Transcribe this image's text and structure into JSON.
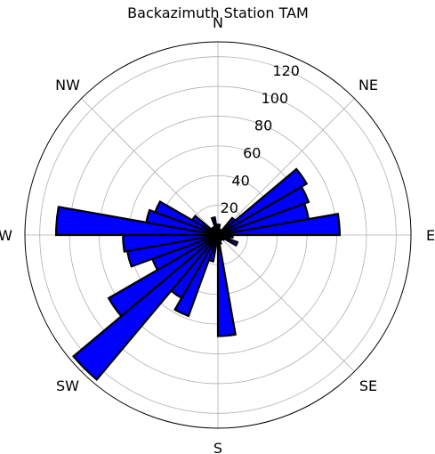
{
  "chart_data": {
    "type": "polar-bar",
    "title": "Backazimuth Station TAM",
    "theta_zero": "N",
    "theta_direction": "clockwise",
    "direction_labels": [
      "N",
      "NE",
      "E",
      "SE",
      "S",
      "SW",
      "W",
      "NW"
    ],
    "r_ticks": [
      20,
      40,
      60,
      80,
      100,
      120
    ],
    "rlim": [
      0,
      130
    ],
    "grid": true,
    "bin_width_deg": 10,
    "bins": [
      {
        "angle_deg": 5,
        "value": 7
      },
      {
        "angle_deg": 15,
        "value": 4
      },
      {
        "angle_deg": 25,
        "value": 3
      },
      {
        "angle_deg": 35,
        "value": 3
      },
      {
        "angle_deg": 45,
        "value": 15
      },
      {
        "angle_deg": 55,
        "value": 69
      },
      {
        "angle_deg": 65,
        "value": 65
      },
      {
        "angle_deg": 75,
        "value": 62
      },
      {
        "angle_deg": 85,
        "value": 82
      },
      {
        "angle_deg": 95,
        "value": 10
      },
      {
        "angle_deg": 105,
        "value": 8
      },
      {
        "angle_deg": 115,
        "value": 14
      },
      {
        "angle_deg": 125,
        "value": 5
      },
      {
        "angle_deg": 135,
        "value": 4
      },
      {
        "angle_deg": 145,
        "value": 3
      },
      {
        "angle_deg": 155,
        "value": 4
      },
      {
        "angle_deg": 165,
        "value": 6
      },
      {
        "angle_deg": 175,
        "value": 68
      },
      {
        "angle_deg": 185,
        "value": 5
      },
      {
        "angle_deg": 195,
        "value": 18
      },
      {
        "angle_deg": 205,
        "value": 58
      },
      {
        "angle_deg": 215,
        "value": 49
      },
      {
        "angle_deg": 225,
        "value": 127
      },
      {
        "angle_deg": 235,
        "value": 85
      },
      {
        "angle_deg": 245,
        "value": 47
      },
      {
        "angle_deg": 255,
        "value": 62
      },
      {
        "angle_deg": 265,
        "value": 64
      },
      {
        "angle_deg": 275,
        "value": 109
      },
      {
        "angle_deg": 285,
        "value": 49
      },
      {
        "angle_deg": 295,
        "value": 45
      },
      {
        "angle_deg": 305,
        "value": 20
      },
      {
        "angle_deg": 315,
        "value": 5
      },
      {
        "angle_deg": 325,
        "value": 6
      },
      {
        "angle_deg": 335,
        "value": 3
      },
      {
        "angle_deg": 345,
        "value": 12
      },
      {
        "angle_deg": 355,
        "value": 3
      }
    ],
    "colors": {
      "bar_fill": "#0000ff",
      "bar_edge": "#000000",
      "grid": "#b0b0b0",
      "frame": "#000000"
    }
  }
}
